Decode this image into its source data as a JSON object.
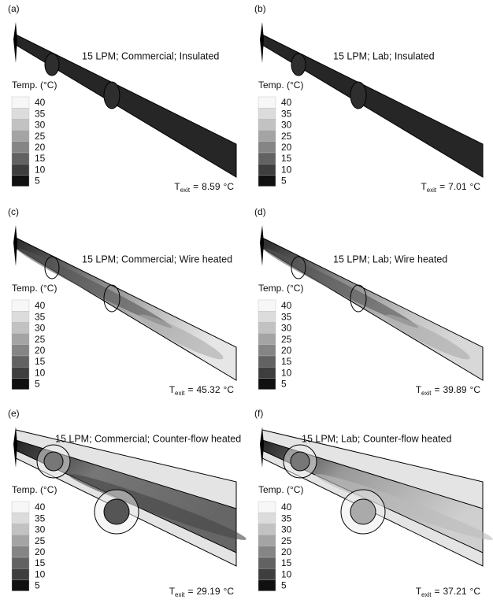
{
  "legend": {
    "title": "Temp. (°C)",
    "ticks": [
      40,
      35,
      30,
      25,
      20,
      15,
      10,
      5
    ]
  },
  "exit_symbol": "T",
  "exit_subscript": "exit",
  "exit_equals": "=",
  "exit_unit": "°C",
  "panels": [
    {
      "label": "(a)",
      "title": "15 LPM; Commercial; Insulated",
      "t_exit": 8.59
    },
    {
      "label": "(b)",
      "title": "15 LPM; Lab; Insulated",
      "t_exit": 7.01
    },
    {
      "label": "(c)",
      "title": "15 LPM; Commercial; Wire heated",
      "t_exit": 45.32
    },
    {
      "label": "(d)",
      "title": "15 LPM; Lab; Wire heated",
      "t_exit": 39.89
    },
    {
      "label": "(e)",
      "title": "15 LPM; Commercial; Counter-flow heated",
      "t_exit": 29.19
    },
    {
      "label": "(f)",
      "title": "15 LPM; Lab; Counter-flow heated",
      "t_exit": 37.21
    }
  ]
}
